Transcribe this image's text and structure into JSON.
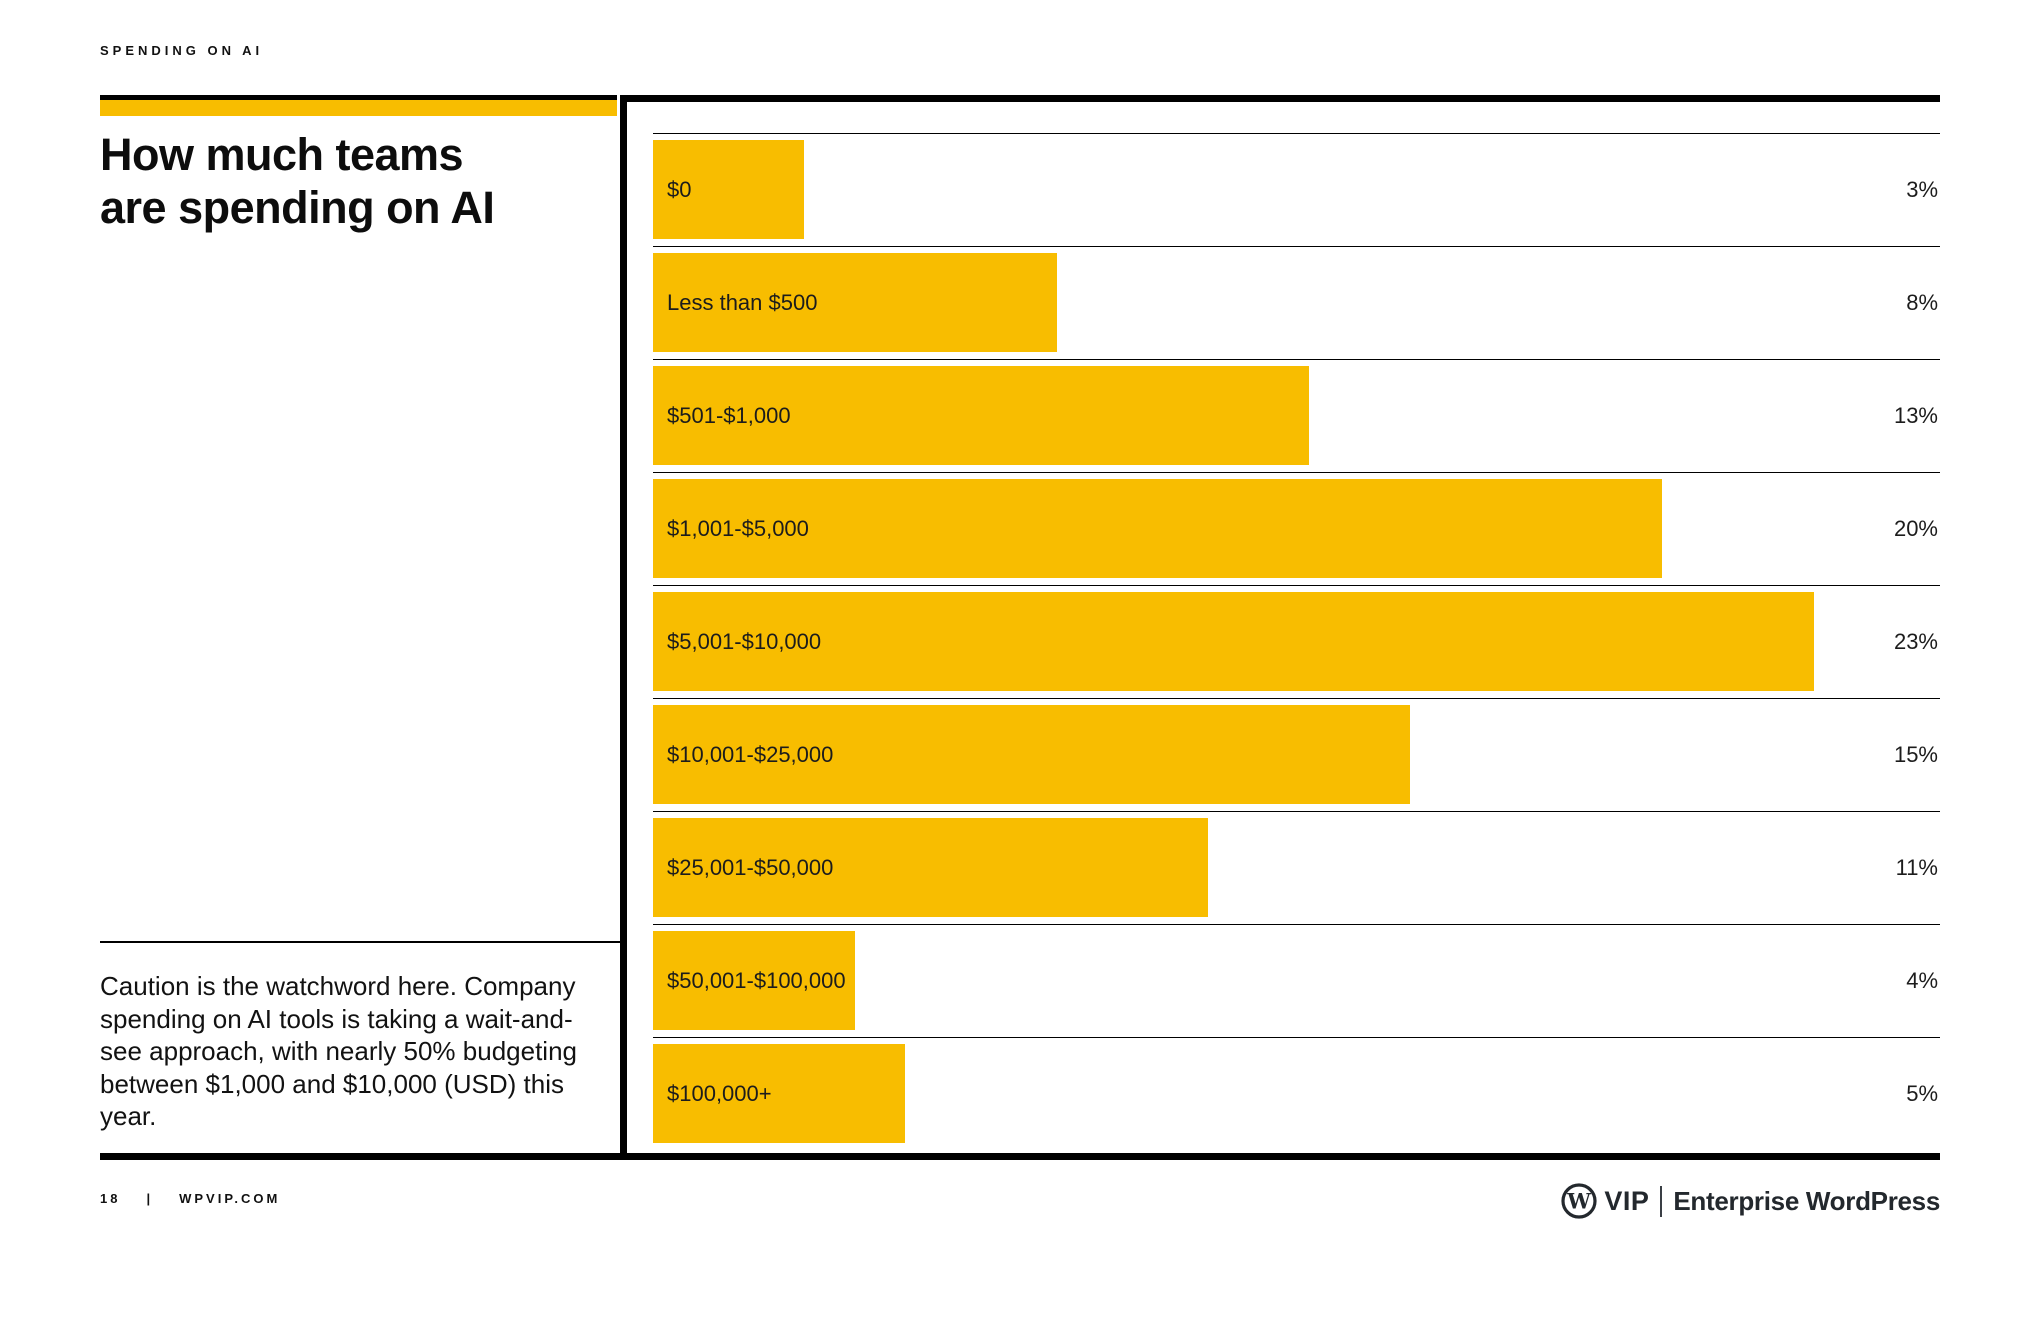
{
  "eyebrow": "SPENDING ON AI",
  "title": {
    "line1": "How much teams",
    "line2": "are spending on AI"
  },
  "caption": "Caution is the watchword here. Company spending on AI tools is taking a wait-and-see approach, with nearly 50% budgeting between $1,000 and $10,000 (USD) this year.",
  "footer": {
    "page_number": "18",
    "separator": "|",
    "site": "WPVIP.COM"
  },
  "brand": {
    "w_glyph": "W",
    "wordmark": "VIP",
    "tagline": "Enterprise WordPress"
  },
  "colors": {
    "accent_yellow": "#F8BD00",
    "text_dark": "#111111",
    "line_black": "#000000",
    "brand_dark": "#23282d"
  },
  "chart_data": {
    "type": "bar",
    "orientation": "horizontal",
    "title": "How much teams are spending on AI",
    "categories": [
      "$0",
      "Less than $500",
      "$501-$1,000",
      "$1,001-$5,000",
      "$5,001-$10,000",
      "$10,001-$25,000",
      "$25,001-$50,000",
      "$50,001-$100,000",
      "$100,000+"
    ],
    "values": [
      3,
      8,
      13,
      20,
      23,
      15,
      11,
      4,
      5
    ],
    "value_suffix": "%",
    "xlim": [
      0,
      25.5
    ],
    "grid": true,
    "legend": false,
    "bar_color": "#F8BD00",
    "value_label_position": "right-edge"
  }
}
